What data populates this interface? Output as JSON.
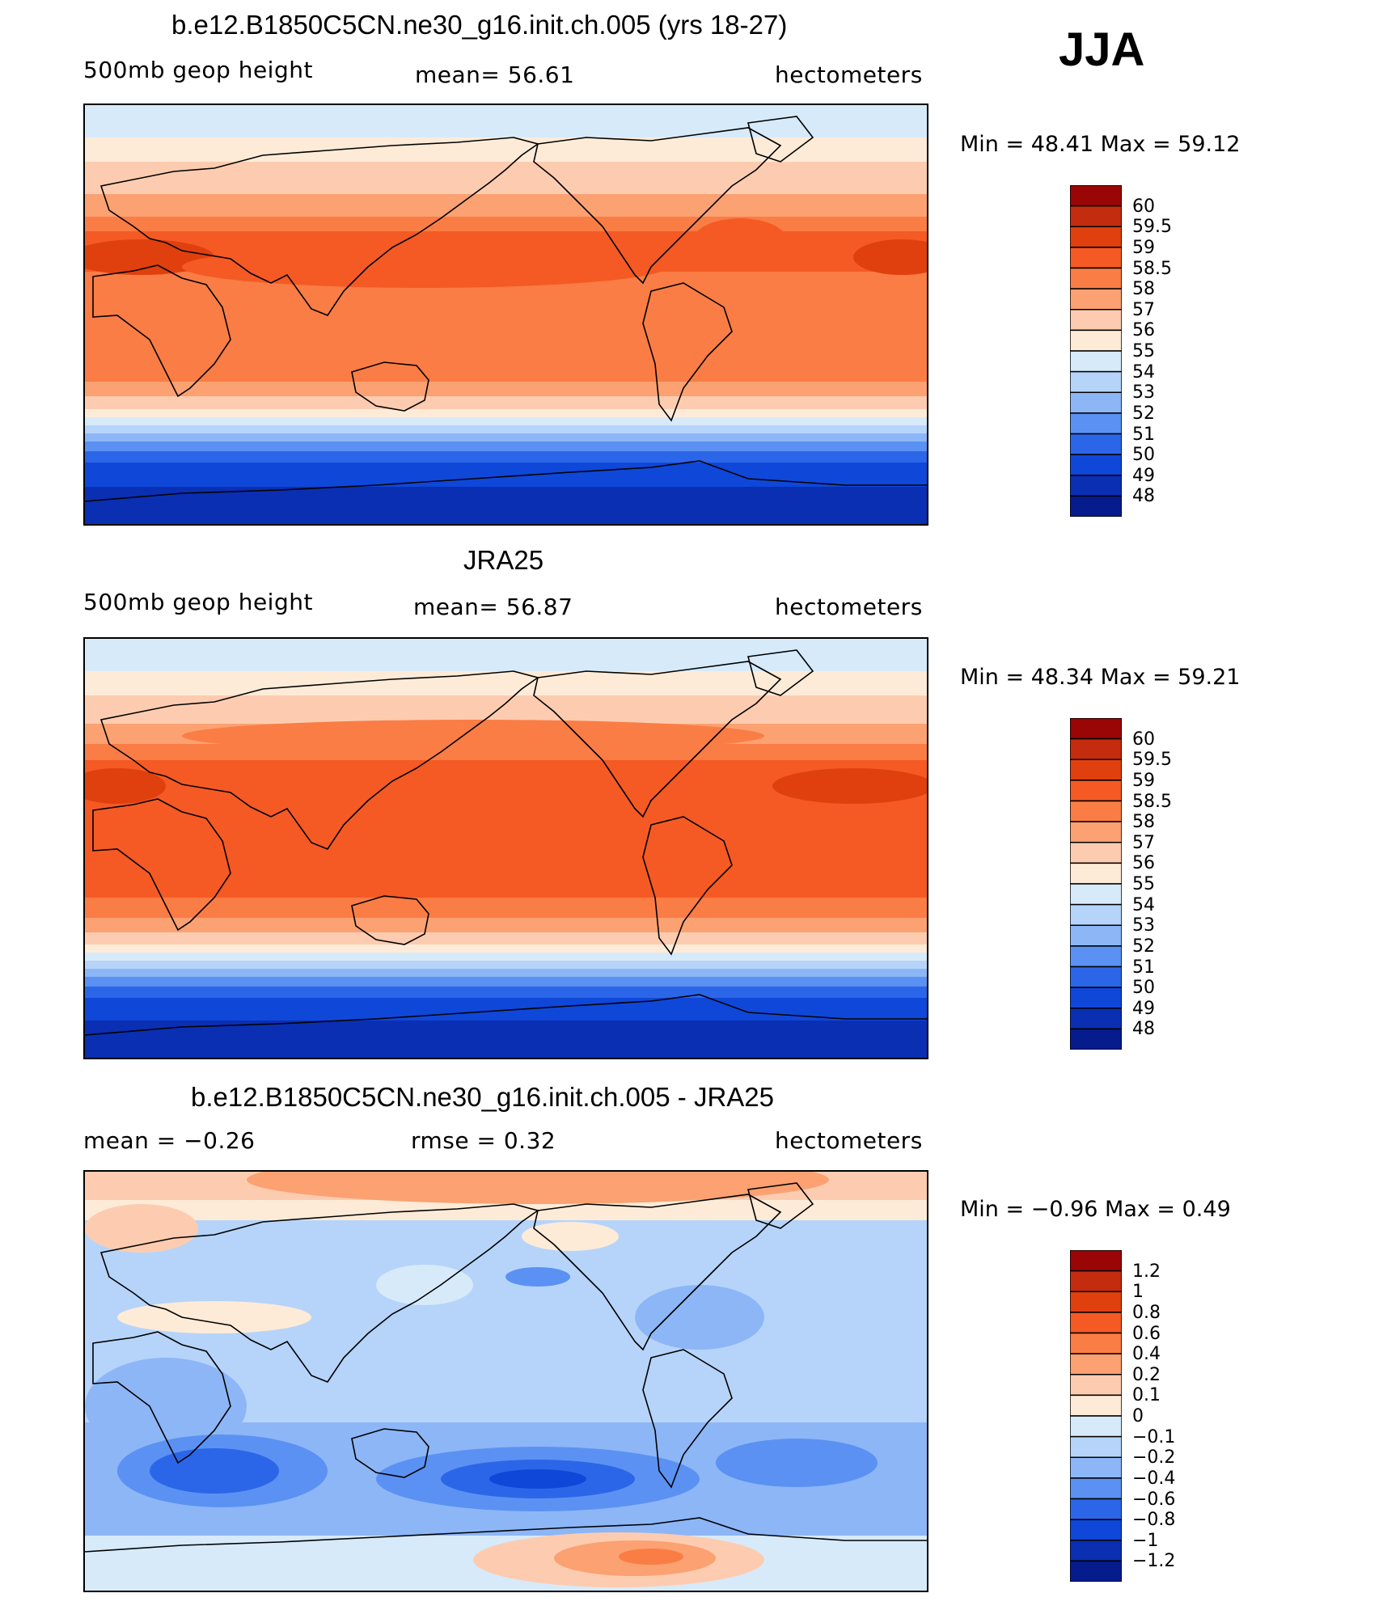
{
  "season": "JJA",
  "colors": {
    "height": [
      "#9a0505",
      "#c32c0e",
      "#e0400e",
      "#f55a24",
      "#fa7d45",
      "#fba172",
      "#fdccb0",
      "#fdebd8",
      "#d7eafa",
      "#b6d4fa",
      "#8db6f7",
      "#5b91f2",
      "#2c66e8",
      "#0f47d8",
      "#0a2fb2",
      "#061b8c"
    ],
    "diff": [
      "#9a0505",
      "#c32c0e",
      "#e0400e",
      "#f55a24",
      "#fa7d45",
      "#fba172",
      "#fdccb0",
      "#fdebd8",
      "#d7eafa",
      "#b6d4fa",
      "#8db6f7",
      "#5b91f2",
      "#2c66e8",
      "#0f47d8",
      "#0a2fb2",
      "#061b8c"
    ]
  },
  "panels": [
    {
      "title": "b.e12.B1850C5CN.ne30_g16.init.ch.005 (yrs 18-27)",
      "left_label": "500mb  geop  height",
      "center_label": "mean=   56.61",
      "right_label": "hectometers",
      "min_max": "Min  =     48.41  Max  =     59.12"
    },
    {
      "title": "JRA25",
      "left_label": "500mb  geop  height",
      "center_label": "mean=   56.87",
      "right_label": "hectometers",
      "min_max": "Min  =     48.34  Max  =     59.21"
    },
    {
      "title": "b.e12.B1850C5CN.ne30_g16.init.ch.005 - JRA25",
      "left_label": "mean  =    −0.26",
      "center_label": "rmse  =      0.32",
      "right_label": "hectometers",
      "min_max": "Min  =    −0.96  Max  =      0.49"
    }
  ],
  "chart_data": [
    {
      "type": "heatmap",
      "title": "b.e12.B1850C5CN.ne30_g16.init.ch.005 (yrs 18-27)",
      "variable": "500mb geop height",
      "units": "hectometers",
      "mean": 56.61,
      "min": 48.41,
      "max": 59.12,
      "levels": [
        "60",
        "59.5",
        "59",
        "58.5",
        "58",
        "57",
        "56",
        "55",
        "54",
        "53",
        "52",
        "51",
        "50",
        "49",
        "48"
      ]
    },
    {
      "type": "heatmap",
      "title": "JRA25",
      "variable": "500mb geop height",
      "units": "hectometers",
      "mean": 56.87,
      "min": 48.34,
      "max": 59.21,
      "levels": [
        "60",
        "59.5",
        "59",
        "58.5",
        "58",
        "57",
        "56",
        "55",
        "54",
        "53",
        "52",
        "51",
        "50",
        "49",
        "48"
      ]
    },
    {
      "type": "heatmap",
      "title": "b.e12.B1850C5CN.ne30_g16.init.ch.005 - JRA25",
      "units": "hectometers",
      "mean": -0.26,
      "rmse": 0.32,
      "min": -0.96,
      "max": 0.49,
      "levels": [
        "1.2",
        "1",
        "0.8",
        "0.6",
        "0.4",
        "0.2",
        "0.1",
        "0",
        "−0.1",
        "−0.2",
        "−0.4",
        "−0.6",
        "−0.8",
        "−1",
        "−1.2"
      ]
    }
  ]
}
